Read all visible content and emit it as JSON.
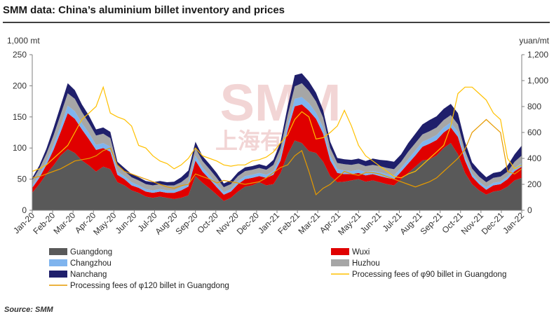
{
  "title": "SMM data: China’s aluminium billet inventory and prices",
  "source": "Source: SMM",
  "watermark": {
    "text": "SMM",
    "subtext": "上海有",
    "color": "#e8b4b4"
  },
  "chart_data": {
    "type": "area",
    "ylabel_left": "1,000 mt",
    "ylabel_right": "yuan/mt",
    "ylim_left": [
      0,
      250
    ],
    "ylim_right": [
      0,
      1200
    ],
    "yticks_left": [
      "0",
      "50",
      "100",
      "150",
      "200",
      "250"
    ],
    "yticks_right": [
      "0",
      "200",
      "400",
      "600",
      "800",
      "1,000",
      "1,200"
    ],
    "categories": [
      "Jan-20",
      "Feb-20",
      "Mar-20",
      "Apr-20",
      "May-20",
      "Jun-20",
      "Jul-20",
      "Aug-20",
      "Sep-20",
      "Oct-20",
      "Nov-20",
      "Dec-20",
      "Jan-21",
      "Feb-21",
      "Mar-21",
      "Apr-21",
      "May-21",
      "Jun-21",
      "Jul-21",
      "Aug-21",
      "Sep-21",
      "Oct-21",
      "Nov-21",
      "Dec-21",
      "Jan-22"
    ],
    "grid": false,
    "legend_position": "bottom",
    "stack_series": [
      {
        "name": "Guangdong",
        "color": "#595959",
        "values": [
          28,
          42,
          58,
          72,
          88,
          98,
          92,
          80,
          72,
          62,
          70,
          66,
          45,
          40,
          32,
          28,
          22,
          20,
          22,
          20,
          18,
          20,
          24,
          55,
          44,
          35,
          25,
          15,
          20,
          30,
          38,
          40,
          45,
          40,
          42,
          60,
          90,
          112,
          108,
          95,
          92,
          78,
          55,
          45,
          46,
          48,
          50,
          46,
          48,
          45,
          42,
          40,
          50,
          60,
          70,
          80,
          82,
          88,
          100,
          108,
          90,
          60,
          42,
          32,
          25,
          30,
          32,
          38,
          48,
          52
        ]
      },
      {
        "name": "Wuxi",
        "color": "#e00000",
        "values": [
          8,
          10,
          15,
          25,
          38,
          58,
          55,
          50,
          42,
          35,
          30,
          28,
          12,
          10,
          8,
          8,
          8,
          8,
          8,
          8,
          10,
          12,
          14,
          25,
          18,
          15,
          12,
          10,
          10,
          12,
          12,
          12,
          10,
          12,
          15,
          20,
          38,
          55,
          62,
          65,
          55,
          45,
          25,
          15,
          12,
          10,
          10,
          10,
          10,
          10,
          10,
          10,
          12,
          15,
          18,
          22,
          25,
          25,
          25,
          25,
          28,
          20,
          12,
          10,
          8,
          10,
          10,
          12,
          15,
          18
        ]
      },
      {
        "name": "Changzhou",
        "color": "#7fb4ee",
        "values": [
          4,
          5,
          6,
          8,
          10,
          12,
          12,
          10,
          10,
          8,
          8,
          8,
          5,
          5,
          5,
          4,
          4,
          4,
          4,
          4,
          4,
          5,
          6,
          8,
          7,
          6,
          5,
          4,
          4,
          5,
          5,
          5,
          5,
          5,
          6,
          8,
          10,
          12,
          12,
          12,
          10,
          10,
          8,
          6,
          6,
          5,
          5,
          5,
          5,
          6,
          6,
          6,
          6,
          7,
          8,
          8,
          8,
          8,
          8,
          8,
          8,
          6,
          5,
          4,
          4,
          4,
          4,
          4,
          5,
          6
        ]
      },
      {
        "name": "Huzhou",
        "color": "#a6a6a6",
        "values": [
          8,
          10,
          12,
          15,
          18,
          20,
          20,
          18,
          16,
          15,
          15,
          14,
          10,
          8,
          8,
          8,
          8,
          8,
          8,
          8,
          8,
          8,
          10,
          12,
          10,
          10,
          10,
          8,
          8,
          8,
          8,
          8,
          8,
          8,
          10,
          12,
          15,
          20,
          22,
          20,
          18,
          16,
          12,
          10,
          10,
          10,
          10,
          10,
          10,
          10,
          10,
          10,
          10,
          12,
          12,
          12,
          12,
          12,
          12,
          12,
          12,
          10,
          8,
          8,
          8,
          8,
          8,
          8,
          10,
          12
        ]
      },
      {
        "name": "Nanchang",
        "color": "#1f1f6b",
        "values": [
          4,
          5,
          8,
          12,
          14,
          16,
          14,
          12,
          12,
          10,
          10,
          10,
          6,
          5,
          5,
          5,
          5,
          5,
          5,
          5,
          6,
          8,
          10,
          10,
          8,
          8,
          8,
          6,
          6,
          6,
          6,
          6,
          6,
          6,
          8,
          10,
          14,
          18,
          16,
          15,
          14,
          12,
          10,
          8,
          8,
          8,
          8,
          8,
          10,
          10,
          12,
          12,
          12,
          14,
          15,
          16,
          18,
          18,
          18,
          18,
          18,
          14,
          10,
          10,
          8,
          8,
          8,
          10,
          12,
          16
        ]
      }
    ],
    "line_series": [
      {
        "name": "Processing fees of φ120 billet in Guangdong",
        "color": "#e69a00",
        "axis": "right",
        "values": [
          250,
          260,
          280,
          300,
          320,
          350,
          380,
          390,
          400,
          420,
          460,
          480,
          350,
          300,
          280,
          260,
          240,
          220,
          200,
          180,
          170,
          190,
          200,
          280,
          260,
          240,
          210,
          230,
          220,
          210,
          200,
          210,
          220,
          250,
          290,
          330,
          350,
          420,
          460,
          300,
          120,
          170,
          200,
          250,
          300,
          280,
          270,
          290,
          290,
          280,
          260,
          240,
          220,
          200,
          180,
          200,
          220,
          250,
          300,
          350,
          400,
          470,
          600,
          650,
          700,
          650,
          600,
          300,
          280,
          320
        ]
      },
      {
        "name": "Processing fees of φ90 billet in Guangdong",
        "color": "#ffc000",
        "axis": "right",
        "values": [
          300,
          320,
          350,
          400,
          450,
          500,
          600,
          700,
          750,
          800,
          950,
          750,
          720,
          700,
          650,
          500,
          480,
          420,
          380,
          360,
          320,
          350,
          400,
          480,
          420,
          400,
          380,
          350,
          340,
          350,
          350,
          380,
          390,
          410,
          450,
          520,
          580,
          700,
          760,
          720,
          550,
          560,
          600,
          650,
          770,
          650,
          500,
          420,
          380,
          340,
          300,
          260,
          250,
          280,
          300,
          350,
          400,
          450,
          500,
          650,
          900,
          950,
          950,
          900,
          850,
          750,
          700,
          400,
          320,
          350
        ]
      }
    ],
    "legend": [
      {
        "name": "Guangdong",
        "kind": "swatch",
        "color": "#595959"
      },
      {
        "name": "Wuxi",
        "kind": "swatch",
        "color": "#e00000"
      },
      {
        "name": "Changzhou",
        "kind": "swatch",
        "color": "#7fb4ee"
      },
      {
        "name": "Huzhou",
        "kind": "swatch",
        "color": "#a6a6a6"
      },
      {
        "name": "Nanchang",
        "kind": "swatch",
        "color": "#1f1f6b"
      },
      {
        "name": "Processing fees of φ90 billet in Guangdong",
        "kind": "line",
        "color": "#ffc000"
      },
      {
        "name": "Processing fees of φ120 billet in Guangdong",
        "kind": "line",
        "color": "#e69a00"
      }
    ]
  }
}
